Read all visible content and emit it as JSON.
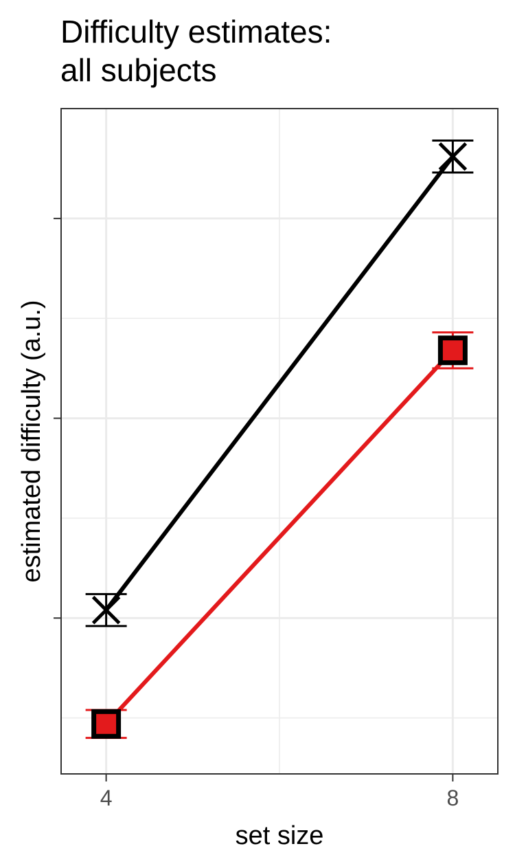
{
  "chart_data": {
    "type": "line",
    "title": "Difficulty estimates:\nall subjects",
    "xlabel": "set size",
    "ylabel": "estimated difficulty (a.u.)",
    "x_ticks": [
      4,
      8
    ],
    "x_tick_labels": [
      "4",
      "8"
    ],
    "y_tick_labels_shown": false,
    "y_ticks": [
      1.0,
      2.0,
      3.0
    ],
    "ylim": [
      0.22,
      3.55
    ],
    "xlim": [
      3.48,
      8.52
    ],
    "grid": true,
    "legend": "none",
    "series": [
      {
        "color": "#000000",
        "marker": "x",
        "x": [
          4,
          8
        ],
        "values": [
          1.04,
          3.31
        ],
        "error_low": [
          0.96,
          3.23
        ],
        "error_high": [
          1.12,
          3.39
        ]
      },
      {
        "color": "#e31a1c",
        "marker": "square",
        "x": [
          4,
          8
        ],
        "values": [
          0.47,
          2.34
        ],
        "error_low": [
          0.4,
          2.25
        ],
        "error_high": [
          0.54,
          2.43
        ]
      }
    ]
  }
}
